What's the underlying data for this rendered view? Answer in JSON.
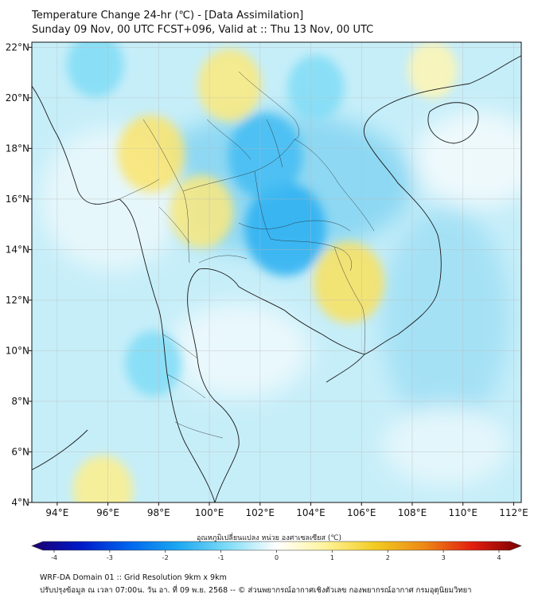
{
  "title_line1": "Temperature Change 24-hr (℃) - [Data Assimilation]",
  "title_line2": "Sunday 09 Nov, 00 UTC FCST+096, Valid at :: Thu 13 Nov, 00 UTC",
  "map": {
    "lon_range": [
      93,
      112.3
    ],
    "lat_range": [
      4,
      22.2
    ],
    "lon_ticks": [
      {
        "value": 94,
        "label": "94°E"
      },
      {
        "value": 96,
        "label": "96°E"
      },
      {
        "value": 98,
        "label": "98°E"
      },
      {
        "value": 100,
        "label": "100°E"
      },
      {
        "value": 102,
        "label": "102°E"
      },
      {
        "value": 104,
        "label": "104°E"
      },
      {
        "value": 106,
        "label": "106°E"
      },
      {
        "value": 108,
        "label": "108°E"
      },
      {
        "value": 110,
        "label": "110°E"
      },
      {
        "value": 112,
        "label": "112°E"
      }
    ],
    "lat_ticks": [
      {
        "value": 4,
        "label": "4°N"
      },
      {
        "value": 6,
        "label": "6°N"
      },
      {
        "value": 8,
        "label": "8°N"
      },
      {
        "value": 10,
        "label": "10°N"
      },
      {
        "value": 12,
        "label": "12°N"
      },
      {
        "value": 14,
        "label": "14°N"
      },
      {
        "value": 16,
        "label": "16°N"
      },
      {
        "value": 18,
        "label": "18°N"
      },
      {
        "value": 20,
        "label": "20°N"
      },
      {
        "value": 22,
        "label": "22°N"
      }
    ],
    "field_features": [
      {
        "kind": "warm",
        "lon": 97.7,
        "lat": 17.8,
        "value": 1.1
      },
      {
        "kind": "warm",
        "lon": 99.7,
        "lat": 15.5,
        "value": 1.0
      },
      {
        "kind": "warm",
        "lon": 100.8,
        "lat": 20.5,
        "value": 1.0
      },
      {
        "kind": "warm",
        "lon": 105.5,
        "lat": 12.7,
        "value": 1.2
      },
      {
        "kind": "warm",
        "lon": 95.8,
        "lat": 4.5,
        "value": 0.9
      },
      {
        "kind": "warm",
        "lon": 108.8,
        "lat": 21.1,
        "value": 0.6
      },
      {
        "kind": "cool",
        "lon": 103.0,
        "lat": 14.8,
        "value": -1.5
      },
      {
        "kind": "cool",
        "lon": 102.2,
        "lat": 17.7,
        "value": -1.3
      },
      {
        "kind": "cool",
        "lon": 95.5,
        "lat": 21.3,
        "value": -0.8
      },
      {
        "kind": "cool",
        "lon": 104.2,
        "lat": 20.4,
        "value": -0.8
      },
      {
        "kind": "cool",
        "lon": 97.8,
        "lat": 9.5,
        "value": -0.8
      }
    ]
  },
  "colorbar": {
    "title": "อุณหภูมิเปลี่ยนแปลง หน่วย องศาเซลเซียส (℃)",
    "min": -4,
    "max": 4,
    "ticks": [
      {
        "value": -4,
        "label": "-4"
      },
      {
        "value": -3,
        "label": "-3"
      },
      {
        "value": -2,
        "label": "-2"
      },
      {
        "value": -1,
        "label": "-1"
      },
      {
        "value": 0,
        "label": "0"
      },
      {
        "value": 1,
        "label": "1"
      },
      {
        "value": 2,
        "label": "2"
      },
      {
        "value": 3,
        "label": "3"
      },
      {
        "value": 4,
        "label": "4"
      }
    ],
    "stops": [
      "#1c006e",
      "#0019c8",
      "#0066ee",
      "#1ea8f0",
      "#7fdcf6",
      "#ffffff",
      "#fff39a",
      "#f2cc22",
      "#ec8a14",
      "#e31e10",
      "#7a0000"
    ]
  },
  "footer_line1": "WRF-DA Domain 01 :: Grid Resolution 9km x 9km",
  "footer_line2": "ปรับปรุงข้อมูล ณ เวลา 07:00น. วัน อา. ที่ 09 พ.ย. 2568 -- © ส่วนพยากรณ์อากาศเชิงตัวเลข กองพยากรณ์อากาศ กรมอุตุนิยมวิทยา"
}
